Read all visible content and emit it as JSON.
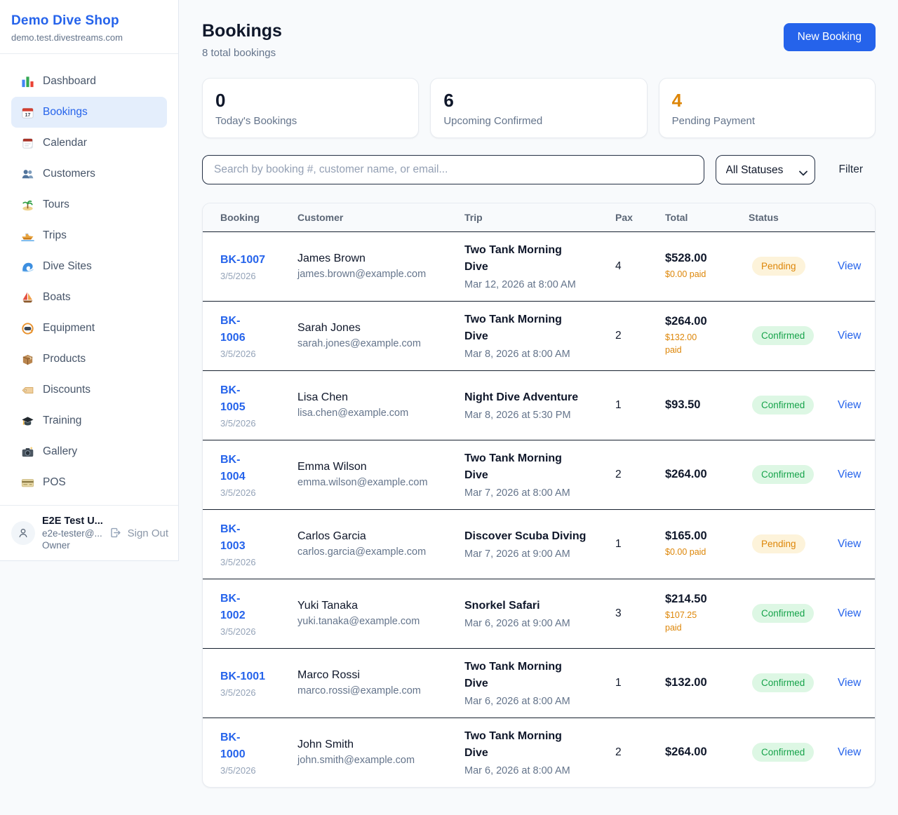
{
  "sidebar": {
    "shop_name": "Demo Dive Shop",
    "shop_domain": "demo.test.divestreams.com",
    "nav": [
      {
        "label": "Dashboard",
        "icon": "bar-chart-icon",
        "active": false
      },
      {
        "label": "Bookings",
        "icon": "calendar-date-icon",
        "active": true
      },
      {
        "label": "Calendar",
        "icon": "tear-off-calendar-icon",
        "active": false
      },
      {
        "label": "Customers",
        "icon": "people-icon",
        "active": false
      },
      {
        "label": "Tours",
        "icon": "island-icon",
        "active": false
      },
      {
        "label": "Trips",
        "icon": "speedboat-icon",
        "active": false
      },
      {
        "label": "Dive Sites",
        "icon": "wave-icon",
        "active": false
      },
      {
        "label": "Boats",
        "icon": "sailboat-icon",
        "active": false
      },
      {
        "label": "Equipment",
        "icon": "diving-mask-icon",
        "active": false
      },
      {
        "label": "Products",
        "icon": "package-icon",
        "active": false
      },
      {
        "label": "Discounts",
        "icon": "tag-icon",
        "active": false
      },
      {
        "label": "Training",
        "icon": "graduation-cap-icon",
        "active": false
      },
      {
        "label": "Gallery",
        "icon": "camera-icon",
        "active": false
      },
      {
        "label": "POS",
        "icon": "credit-card-icon",
        "active": false
      }
    ],
    "user": {
      "name": "E2E Test U...",
      "email": "e2e-tester@...",
      "role": "Owner",
      "sign_out_label": "Sign Out"
    }
  },
  "header": {
    "title": "Bookings",
    "subtitle": "8 total bookings",
    "new_booking_label": "New Booking"
  },
  "stats": [
    {
      "value": "0",
      "label": "Today's Bookings",
      "value_color": "#0f172a"
    },
    {
      "value": "6",
      "label": "Upcoming Confirmed",
      "value_color": "#0f172a"
    },
    {
      "value": "4",
      "label": "Pending Payment",
      "value_color": "#dd8608"
    }
  ],
  "filters": {
    "search_placeholder": "Search by booking #, customer name, or email...",
    "status_select_value": "All Statuses",
    "filter_label": "Filter"
  },
  "table": {
    "columns": [
      "Booking",
      "Customer",
      "Trip",
      "Pax",
      "Total",
      "Status"
    ],
    "view_label": "View",
    "rows": [
      {
        "id": "BK-1007",
        "id_wrap": false,
        "date": "3/5/2026",
        "customer": "James Brown",
        "email": "james.brown@example.com",
        "trip": "Two Tank Morning Dive",
        "trip_datetime": "Mar 12, 2026 at 8:00 AM",
        "pax": "4",
        "total": "$528.00",
        "paid": "$0.00 paid",
        "status": "Pending"
      },
      {
        "id": "BK-1006",
        "id_wrap": true,
        "date": "3/5/2026",
        "customer": "Sarah Jones",
        "email": "sarah.jones@example.com",
        "trip": "Two Tank Morning Dive",
        "trip_datetime": "Mar 8, 2026 at 8:00 AM",
        "pax": "2",
        "total": "$264.00",
        "paid": "$132.00 paid",
        "status": "Confirmed"
      },
      {
        "id": "BK-1005",
        "id_wrap": true,
        "date": "3/5/2026",
        "customer": "Lisa Chen",
        "email": "lisa.chen@example.com",
        "trip": "Night Dive Adventure",
        "trip_datetime": "Mar 8, 2026 at 5:30 PM",
        "pax": "1",
        "total": "$93.50",
        "paid": "",
        "status": "Confirmed"
      },
      {
        "id": "BK-1004",
        "id_wrap": true,
        "date": "3/5/2026",
        "customer": "Emma Wilson",
        "email": "emma.wilson@example.com",
        "trip": "Two Tank Morning Dive",
        "trip_datetime": "Mar 7, 2026 at 8:00 AM",
        "pax": "2",
        "total": "$264.00",
        "paid": "",
        "status": "Confirmed"
      },
      {
        "id": "BK-1003",
        "id_wrap": true,
        "date": "3/5/2026",
        "customer": "Carlos Garcia",
        "email": "carlos.garcia@example.com",
        "trip": "Discover Scuba Diving",
        "trip_datetime": "Mar 7, 2026 at 9:00 AM",
        "pax": "1",
        "total": "$165.00",
        "paid": "$0.00 paid",
        "status": "Pending"
      },
      {
        "id": "BK-1002",
        "id_wrap": true,
        "date": "3/5/2026",
        "customer": "Yuki Tanaka",
        "email": "yuki.tanaka@example.com",
        "trip": "Snorkel Safari",
        "trip_datetime": "Mar 6, 2026 at 9:00 AM",
        "pax": "3",
        "total": "$214.50",
        "paid": "$107.25 paid",
        "status": "Confirmed"
      },
      {
        "id": "BK-1001",
        "id_wrap": false,
        "date": "3/5/2026",
        "customer": "Marco Rossi",
        "email": "marco.rossi@example.com",
        "trip": "Two Tank Morning Dive",
        "trip_datetime": "Mar 6, 2026 at 8:00 AM",
        "pax": "1",
        "total": "$132.00",
        "paid": "",
        "status": "Confirmed"
      },
      {
        "id": "BK-1000",
        "id_wrap": true,
        "date": "3/5/2026",
        "customer": "John Smith",
        "email": "john.smith@example.com",
        "trip": "Two Tank Morning Dive",
        "trip_datetime": "Mar 6, 2026 at 8:00 AM",
        "pax": "2",
        "total": "$264.00",
        "paid": "",
        "status": "Confirmed"
      }
    ]
  },
  "colors": {
    "brand_blue": "#2563eb",
    "orange": "#dd8608",
    "pending_badge_bg": "#fdf3da",
    "confirmed_green": "#16a34a",
    "confirmed_badge_bg": "#ddf7e4",
    "page_bg": "#f8fafc",
    "row_divider": "#16202e"
  }
}
